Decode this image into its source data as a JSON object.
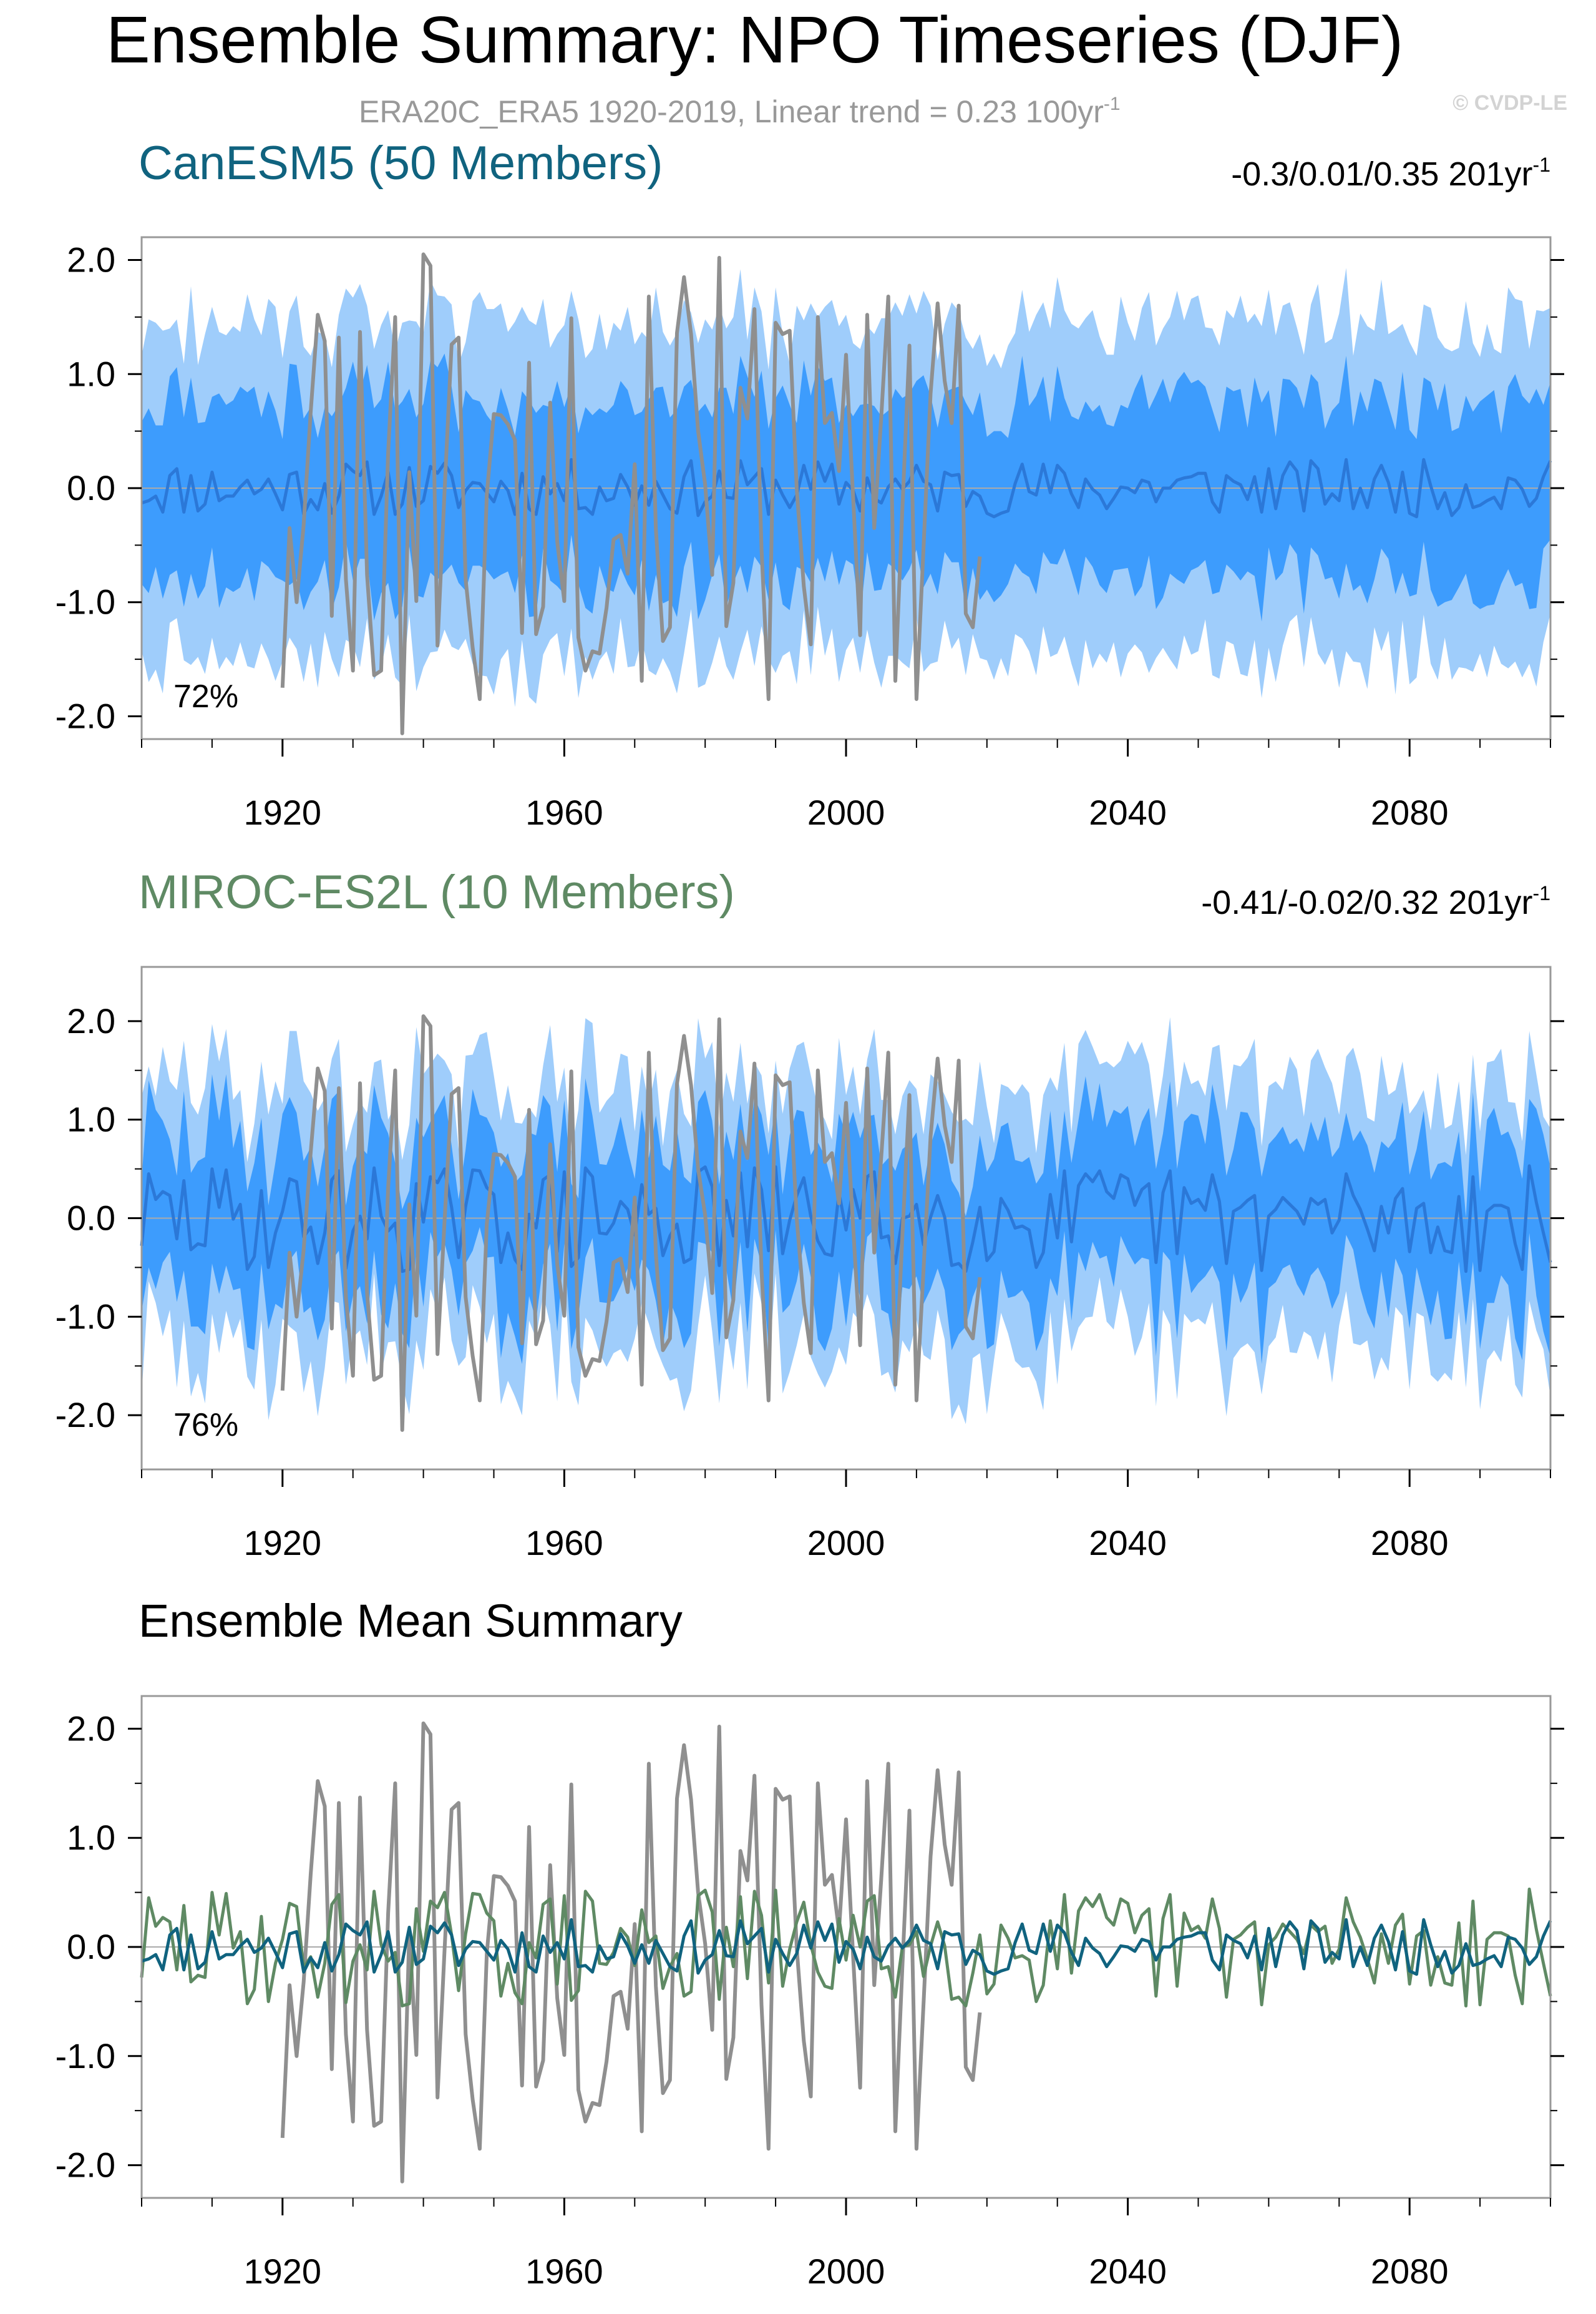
{
  "title": "Ensemble Summary: NPO Timeseries (DJF)",
  "subtitle": "ERA20C_ERA5 1920-2019, Linear trend = 0.23 100yr",
  "subtitle_sup": "-1",
  "watermark": "© CVDP-LE",
  "colors": {
    "band_outer": "#9fcdfb",
    "band_inner": "#3d9cfd",
    "mean_line": "#2b78d8",
    "obs_line": "#8f8f8f",
    "canesm5": "#10637f",
    "miroc": "#5f8a64",
    "zero_line": "#aaaaaa",
    "frame": "#999999"
  },
  "chart_data": [
    {
      "type": "area",
      "title": "CanESM5 (50 Members)",
      "trend_text": "-0.3/0.01/0.35 201yr",
      "trend_sup": "-1",
      "percent_label": "72%",
      "xlim": [
        1900,
        2100
      ],
      "ylim": [
        -2.2,
        2.2
      ],
      "xticks": [
        1920,
        1960,
        2000,
        2040,
        2080
      ],
      "yticks": [
        "2.0",
        "1.0",
        "0.0",
        "-1.0",
        "-2.0"
      ],
      "series": [
        {
          "role": "ensemble_mean",
          "values": []
        },
        {
          "role": "band_inner_half_width",
          "values": []
        },
        {
          "role": "band_outer_half_width",
          "values": []
        },
        {
          "role": "observations",
          "values": []
        }
      ]
    },
    {
      "type": "area",
      "title": "MIROC-ES2L (10 Members)",
      "trend_text": "-0.41/-0.02/0.32 201yr",
      "trend_sup": "-1",
      "percent_label": "76%",
      "xlim": [
        1900,
        2100
      ],
      "ylim": [
        -2.55,
        2.55
      ],
      "xticks": [
        1920,
        1960,
        2000,
        2040,
        2080
      ],
      "yticks": [
        "2.0",
        "1.0",
        "0.0",
        "-1.0",
        "-2.0"
      ],
      "series": [
        {
          "role": "ensemble_mean",
          "values": []
        },
        {
          "role": "band_inner_half_width",
          "values": []
        },
        {
          "role": "band_outer_half_width",
          "values": []
        },
        {
          "role": "observations",
          "values": []
        }
      ]
    },
    {
      "type": "line",
      "title": "Ensemble Mean Summary",
      "xlim": [
        1900,
        2100
      ],
      "ylim": [
        -2.3,
        2.3
      ],
      "xticks": [
        1920,
        1960,
        2000,
        2040,
        2080
      ],
      "yticks": [
        "2.0",
        "1.0",
        "0.0",
        "-1.0",
        "-2.0"
      ],
      "series": [
        {
          "role": "observations",
          "values": []
        },
        {
          "role": "miroc_mean",
          "values": []
        },
        {
          "role": "canesm5_mean",
          "values": []
        }
      ]
    }
  ]
}
